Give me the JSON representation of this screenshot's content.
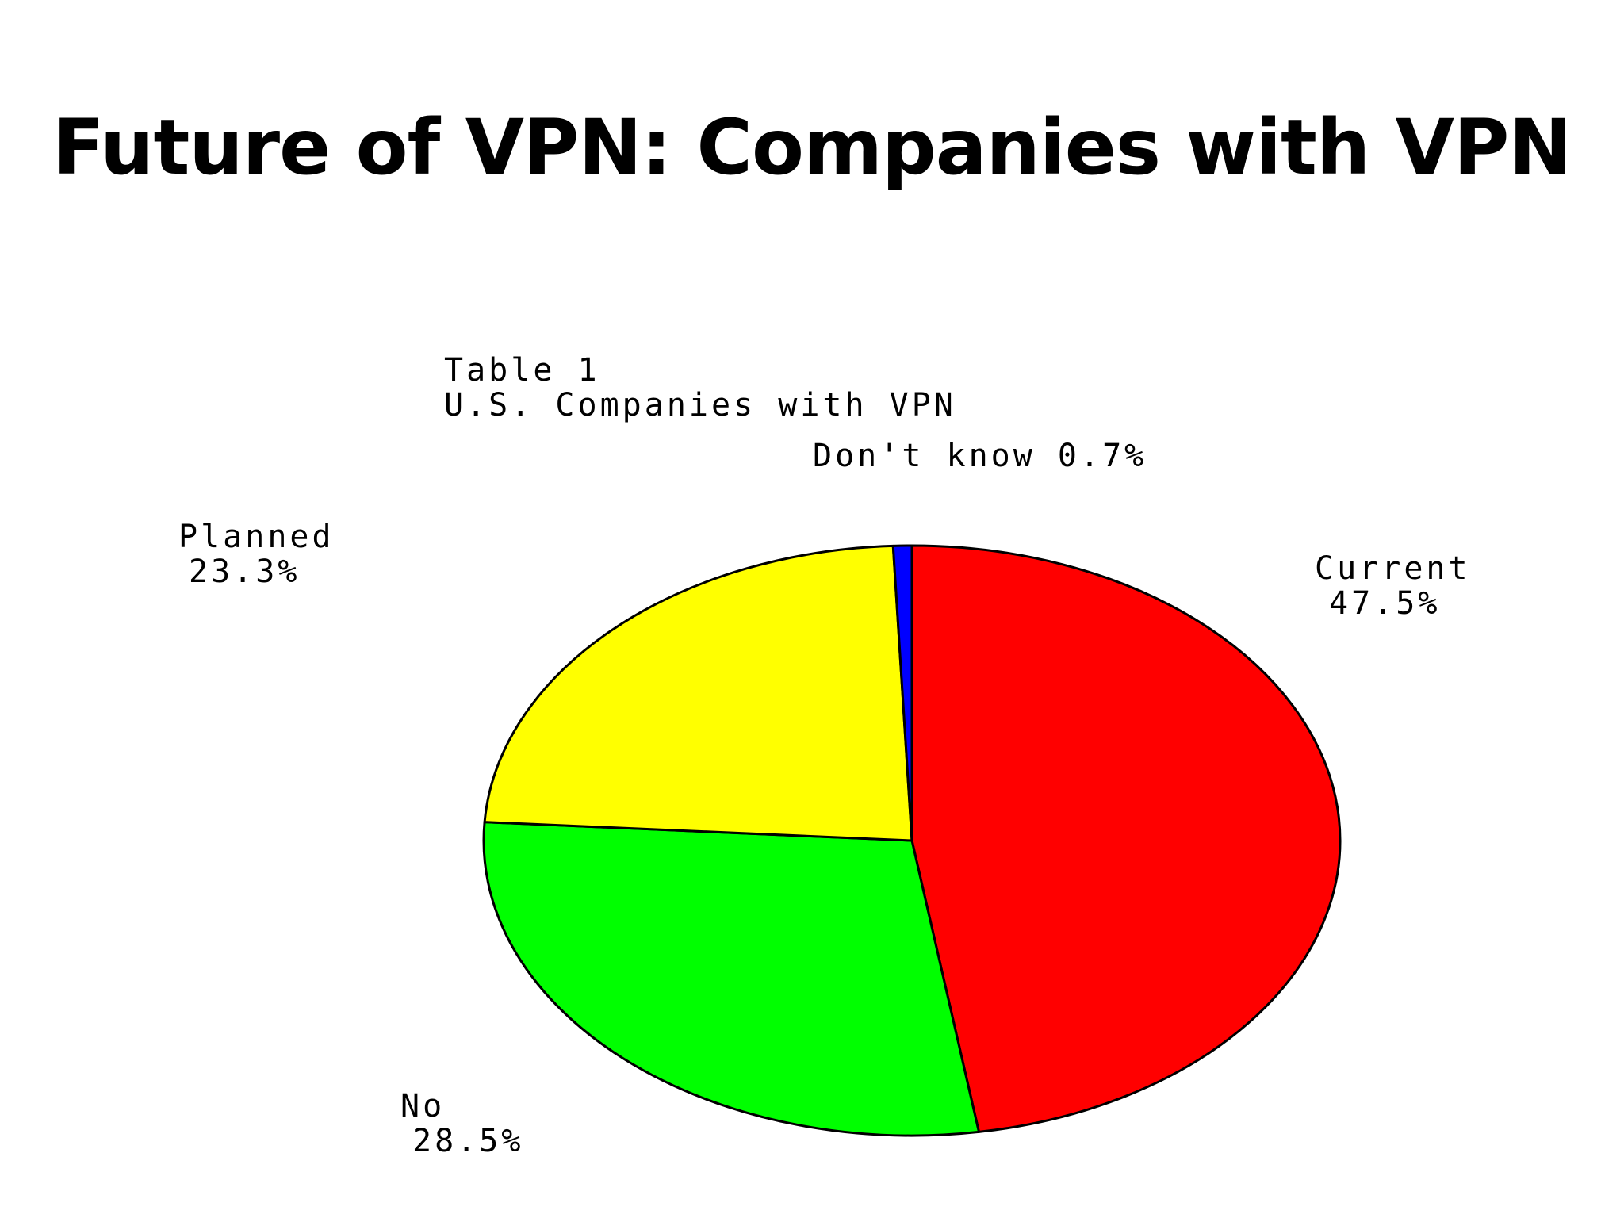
{
  "slide": {
    "title": "Future of VPN: Companies with VPN"
  },
  "chart_data": {
    "type": "pie",
    "title": "Table 1",
    "subtitle": "U.S. Companies with VPN",
    "slices": [
      {
        "name": "Current",
        "value": 47.5,
        "label": "47.5%",
        "color": "#ff0000"
      },
      {
        "name": "No",
        "value": 28.5,
        "label": "28.5%",
        "color": "#00ff00"
      },
      {
        "name": "Planned",
        "value": 23.3,
        "label": "23.3%",
        "color": "#ffff00"
      },
      {
        "name": "Don't know",
        "value": 0.7,
        "label": "0.7%",
        "color": "#0000ff"
      }
    ],
    "start_direction": "top",
    "rotation": "clockwise",
    "outline_color": "#000000"
  }
}
